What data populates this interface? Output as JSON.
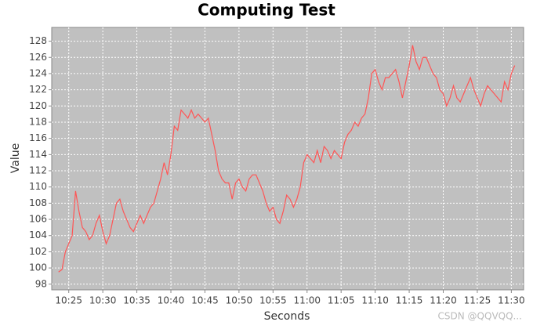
{
  "chart_data": {
    "type": "line",
    "title": "Computing Test",
    "x_label": "Seconds",
    "y_label": "Value",
    "watermark": "CSDN @QQVQQ...",
    "x": [
      623.5,
      624,
      624.5,
      625,
      625.5,
      626,
      626.5,
      627,
      627.5,
      628,
      628.5,
      629,
      629.5,
      630,
      630.5,
      631,
      631.5,
      632,
      632.5,
      633,
      633.5,
      634,
      634.5,
      635,
      635.5,
      636,
      636.5,
      637,
      637.5,
      638,
      638.5,
      639,
      639.5,
      640,
      640.5,
      641,
      641.5,
      642,
      642.5,
      643,
      643.5,
      644,
      644.5,
      645,
      645.5,
      646,
      646.5,
      647,
      647.5,
      648,
      648.5,
      649,
      649.5,
      650,
      650.5,
      651,
      651.5,
      652,
      652.5,
      653,
      653.5,
      654,
      654.5,
      655,
      655.5,
      656,
      656.5,
      657,
      657.5,
      658,
      658.5,
      659,
      659.5,
      660,
      660.5,
      661,
      661.5,
      662,
      662.5,
      663,
      663.5,
      664,
      664.5,
      665,
      665.5,
      666,
      666.5,
      667,
      667.5,
      668,
      668.5,
      669,
      669.5,
      670,
      670.5,
      671,
      671.5,
      672,
      672.5,
      673,
      673.5,
      674,
      674.5,
      675,
      675.5,
      676,
      676.5,
      677,
      677.5,
      678,
      678.5,
      679,
      679.5,
      680,
      680.5,
      681,
      681.5,
      682,
      682.5,
      683,
      683.5,
      684,
      684.5,
      685,
      685.5,
      686,
      686.5,
      687,
      687.5,
      688,
      688.5,
      689,
      689.5,
      690,
      690.5
    ],
    "series": [
      {
        "name": "Value",
        "color": "#ff5555",
        "values": [
          99.5,
          99.8,
          102,
          103,
          104,
          109.5,
          107,
          105,
          104.5,
          103.5,
          104,
          105.5,
          106.5,
          104.5,
          103,
          104,
          106,
          108,
          108.5,
          107,
          106,
          105,
          104.5,
          105.5,
          106.5,
          105.5,
          106.5,
          107.5,
          108,
          109.5,
          111,
          113,
          111.5,
          114,
          117.5,
          117,
          119.5,
          119,
          118.5,
          119.5,
          118.5,
          119,
          118.5,
          118,
          118.5,
          116.5,
          114.5,
          112,
          111,
          110.5,
          110.5,
          108.5,
          110.5,
          111,
          110,
          109.5,
          111,
          111.5,
          111.5,
          110.5,
          109.5,
          108,
          107,
          107.5,
          106,
          105.5,
          107,
          109,
          108.5,
          107.5,
          108.5,
          110,
          113,
          114,
          113.5,
          113,
          114.5,
          113,
          115,
          114.5,
          113.5,
          114.5,
          114,
          113.5,
          115.5,
          116.5,
          117,
          118,
          117.5,
          118.5,
          119,
          121,
          124,
          124.5,
          123,
          122,
          123.5,
          123.5,
          124,
          124.5,
          123,
          121,
          123,
          125,
          127.5,
          125.5,
          124.5,
          126,
          126,
          125,
          124,
          123.5,
          122,
          121.5,
          120,
          121,
          122.5,
          121,
          120.5,
          121.5,
          122.5,
          123.5,
          122,
          121,
          120,
          121.5,
          122.5,
          122,
          121.5,
          121,
          120.5,
          123,
          122,
          124,
          125
        ]
      }
    ],
    "xlim": [
      622.5,
      691.8
    ],
    "ylim": [
      97.3,
      129.7
    ],
    "xticks": [
      {
        "value": 625,
        "label": "10:25"
      },
      {
        "value": 630,
        "label": "10:30"
      },
      {
        "value": 635,
        "label": "10:35"
      },
      {
        "value": 640,
        "label": "10:40"
      },
      {
        "value": 645,
        "label": "10:45"
      },
      {
        "value": 650,
        "label": "10:50"
      },
      {
        "value": 655,
        "label": "10:55"
      },
      {
        "value": 660,
        "label": "11:00"
      },
      {
        "value": 665,
        "label": "11:05"
      },
      {
        "value": 670,
        "label": "11:10"
      },
      {
        "value": 675,
        "label": "11:15"
      },
      {
        "value": 680,
        "label": "11:20"
      },
      {
        "value": 685,
        "label": "11:25"
      },
      {
        "value": 690,
        "label": "11:30"
      }
    ],
    "yticks": [
      98,
      100,
      102,
      104,
      106,
      108,
      110,
      112,
      114,
      116,
      118,
      120,
      122,
      124,
      126,
      128
    ],
    "grid": true,
    "plot_background": "#c0c0c0"
  }
}
